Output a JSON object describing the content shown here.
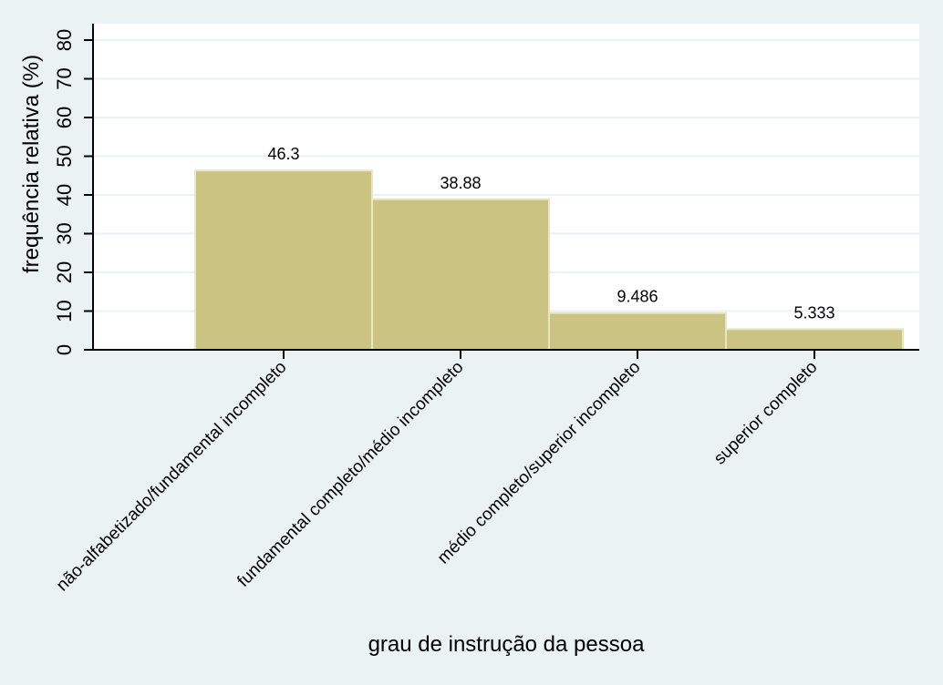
{
  "chart_data": {
    "type": "bar",
    "title": "",
    "xlabel": "grau de instrução da pessoa",
    "ylabel": "frequência relativa (%)",
    "ylim": [
      0,
      80
    ],
    "yticks": [
      0,
      10,
      20,
      30,
      40,
      50,
      60,
      70,
      80
    ],
    "categories": [
      "não-alfabetizado/fundamental incompleto",
      "fundamental completo/médio incompleto",
      "médio completo/superior incompleto",
      "superior completo"
    ],
    "values": [
      46.3,
      38.88,
      9.486,
      5.333
    ],
    "value_labels": [
      "46.3",
      "38.88",
      "9.486",
      "5.333"
    ],
    "grid": true,
    "legend": "none",
    "colors": {
      "background": "#eaf2f3",
      "plot_background": "#ffffff",
      "bar_fill": "#cbc381",
      "bar_edge": "#e8e4c4",
      "gridline": "#eaf2f3",
      "axis": "#000000"
    }
  }
}
